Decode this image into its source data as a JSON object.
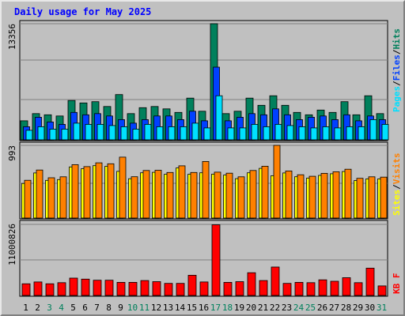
{
  "chart_data": [
    {
      "type": "bar",
      "title": "Daily usage for May 2025",
      "categories": [
        "1",
        "2",
        "3",
        "4",
        "5",
        "6",
        "7",
        "8",
        "9",
        "10",
        "11",
        "12",
        "13",
        "14",
        "15",
        "16",
        "17",
        "18",
        "19",
        "20",
        "21",
        "22",
        "23",
        "24",
        "25",
        "26",
        "27",
        "28",
        "29",
        "30",
        "31"
      ],
      "weekend_days": [
        3,
        4,
        10,
        11,
        17,
        18,
        24,
        25,
        31
      ],
      "ylim": [
        0,
        13356
      ],
      "max_label": "13356",
      "series": [
        {
          "name": "Hits",
          "color": "#00805c",
          "values": [
            2190,
            3014,
            2877,
            2740,
            4521,
            4247,
            4384,
            3836,
            5206,
            3014,
            3699,
            3836,
            3562,
            3151,
            4795,
            3288,
            13356,
            3014,
            3288,
            4795,
            3973,
            5069,
            3973,
            3151,
            2877,
            3425,
            3151,
            4384,
            2877,
            5069,
            3014
          ]
        },
        {
          "name": "Files",
          "color": "#0040ff",
          "values": [
            1507,
            2603,
            2055,
            1781,
            3151,
            2877,
            3014,
            2740,
            2329,
            1918,
            2329,
            2740,
            2740,
            2329,
            3288,
            2192,
            8356,
            2192,
            2603,
            3014,
            2877,
            3562,
            2877,
            2329,
            2603,
            2740,
            2329,
            2877,
            2192,
            2740,
            2329
          ]
        },
        {
          "name": "Pages",
          "color": "#00e0ff",
          "values": [
            1096,
            1507,
            1233,
            1233,
            1918,
            1781,
            1781,
            1644,
            1507,
            1233,
            1781,
            1507,
            1507,
            1507,
            1918,
            1370,
            5069,
            1370,
            1370,
            1781,
            1507,
            1781,
            1644,
            1507,
            1370,
            1507,
            1370,
            1507,
            1507,
            2329,
            1781
          ]
        }
      ]
    },
    {
      "type": "bar",
      "ylim": [
        0,
        993
      ],
      "max_label": "993",
      "series": [
        {
          "name": "Visits",
          "color": "#ff8000",
          "values": [
            516,
            656,
            551,
            563,
            730,
            703,
            754,
            741,
            832,
            564,
            650,
            653,
            623,
            713,
            623,
            773,
            627,
            613,
            563,
            650,
            708,
            993,
            643,
            591,
            571,
            611,
            633,
            667,
            543,
            563,
            559
          ]
        },
        {
          "name": "Sites",
          "color": "#ffff00",
          "values": [
            473,
            616,
            515,
            526,
            698,
            674,
            716,
            706,
            638,
            538,
            619,
            625,
            598,
            684,
            598,
            618,
            600,
            587,
            539,
            618,
            679,
            578,
            616,
            565,
            546,
            583,
            606,
            636,
            512,
            535,
            535
          ]
        }
      ]
    },
    {
      "type": "bar",
      "ylim": [
        0,
        11000826
      ],
      "max_label": "11000826",
      "series": [
        {
          "name": "KB F",
          "color": "#ff0000",
          "values": [
            1815000,
            2090000,
            1815000,
            1980000,
            2695000,
            2530000,
            2365000,
            2365000,
            2035000,
            2035000,
            2310000,
            2145000,
            1870000,
            1870000,
            3135000,
            2090000,
            10945000,
            2035000,
            2145000,
            3520000,
            2310000,
            4400000,
            1870000,
            2035000,
            1980000,
            2420000,
            2200000,
            2750000,
            1980000,
            4235000,
            1485000
          ]
        }
      ]
    }
  ],
  "side_labels": {
    "top": [
      "Pages",
      "Files",
      "Hits"
    ],
    "middle": [
      "Sites",
      "Visits"
    ],
    "bottom": [
      "KB F"
    ],
    "separator": "/",
    "separator_color": "#000000"
  },
  "colors": {
    "background": "#c0c0c0",
    "plot_bg": "#c0c0c0",
    "grid": "#808080",
    "title": "#0000ff",
    "weekday_label": "#000000",
    "weekend_label": "#00805c",
    "bar_outline": "#000000"
  }
}
